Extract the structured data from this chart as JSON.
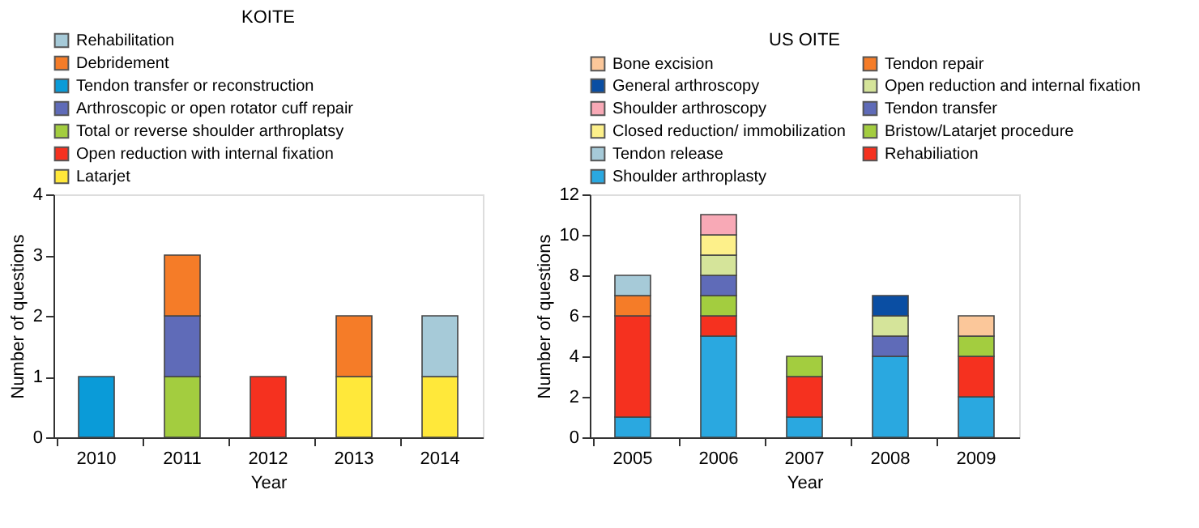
{
  "chart_data": [
    {
      "type": "bar",
      "title": "KOITE",
      "xlabel": "Year",
      "ylabel": "Number of questions",
      "stacked": true,
      "legend": "top",
      "categories": [
        "2010",
        "2011",
        "2012",
        "2013",
        "2014"
      ],
      "ylim": [
        0,
        4
      ],
      "yticks": [
        0,
        1,
        2,
        3,
        4
      ],
      "grid": false,
      "series": [
        {
          "name": "Latarjet",
          "color": "#ffe83a",
          "values": [
            0,
            0,
            0,
            1,
            1
          ]
        },
        {
          "name": "Open reduction with internal fixation",
          "color": "#f5311f",
          "values": [
            0,
            0,
            1,
            0,
            0
          ]
        },
        {
          "name": "Total or reverse shoulder arthroplatsy",
          "color": "#a3cd3f",
          "values": [
            0,
            1,
            0,
            0,
            0
          ]
        },
        {
          "name": "Arthroscopic or open rotator cuff repair",
          "color": "#5f6bb8",
          "values": [
            0,
            1,
            0,
            0,
            0
          ]
        },
        {
          "name": "Tendon transfer or reconstruction",
          "color": "#0a9bd8",
          "values": [
            1,
            0,
            0,
            0,
            0
          ]
        },
        {
          "name": "Debridement",
          "color": "#f57c28",
          "values": [
            0,
            1,
            0,
            1,
            0
          ]
        },
        {
          "name": "Rehabilitation",
          "color": "#a6cad8",
          "values": [
            0,
            0,
            0,
            0,
            1
          ]
        }
      ]
    },
    {
      "type": "bar",
      "title": "US OITE",
      "xlabel": "Year",
      "ylabel": "Number of questions",
      "stacked": true,
      "legend": "top",
      "categories": [
        "2005",
        "2006",
        "2007",
        "2008",
        "2009"
      ],
      "ylim": [
        0,
        12
      ],
      "yticks": [
        0,
        2,
        4,
        6,
        8,
        10,
        12
      ],
      "grid": false,
      "series": [
        {
          "name": "Shoulder arthroplasty",
          "color": "#2aa8e0",
          "values": [
            1,
            5,
            1,
            4,
            2
          ]
        },
        {
          "name": "Rehabiliation",
          "color": "#f5311f",
          "values": [
            5,
            1,
            2,
            0,
            2
          ]
        },
        {
          "name": "Bristow/Latarjet procedure",
          "color": "#a3cd3f",
          "values": [
            0,
            1,
            1,
            0,
            1
          ]
        },
        {
          "name": "Tendon transfer",
          "color": "#5f6bb8",
          "values": [
            0,
            1,
            0,
            1,
            0
          ]
        },
        {
          "name": "Open reduction and internal fixation",
          "color": "#d5e49a",
          "values": [
            0,
            1,
            0,
            1,
            0
          ]
        },
        {
          "name": "Tendon repair",
          "color": "#f57c28",
          "values": [
            1,
            0,
            0,
            0,
            0
          ]
        },
        {
          "name": "Tendon release",
          "color": "#a6cad8",
          "values": [
            1,
            0,
            0,
            0,
            0
          ]
        },
        {
          "name": "Closed reduction/ immobilization",
          "color": "#fdf08a",
          "values": [
            0,
            1,
            0,
            0,
            0
          ]
        },
        {
          "name": "Shoulder arthroscopy",
          "color": "#f8a9b6",
          "values": [
            0,
            1,
            0,
            0,
            0
          ]
        },
        {
          "name": "General arthroscopy",
          "color": "#0a4ea3",
          "values": [
            0,
            0,
            0,
            1,
            0
          ]
        },
        {
          "name": "Bone excision",
          "color": "#fbc79a",
          "values": [
            0,
            0,
            0,
            0,
            1
          ]
        }
      ]
    }
  ]
}
